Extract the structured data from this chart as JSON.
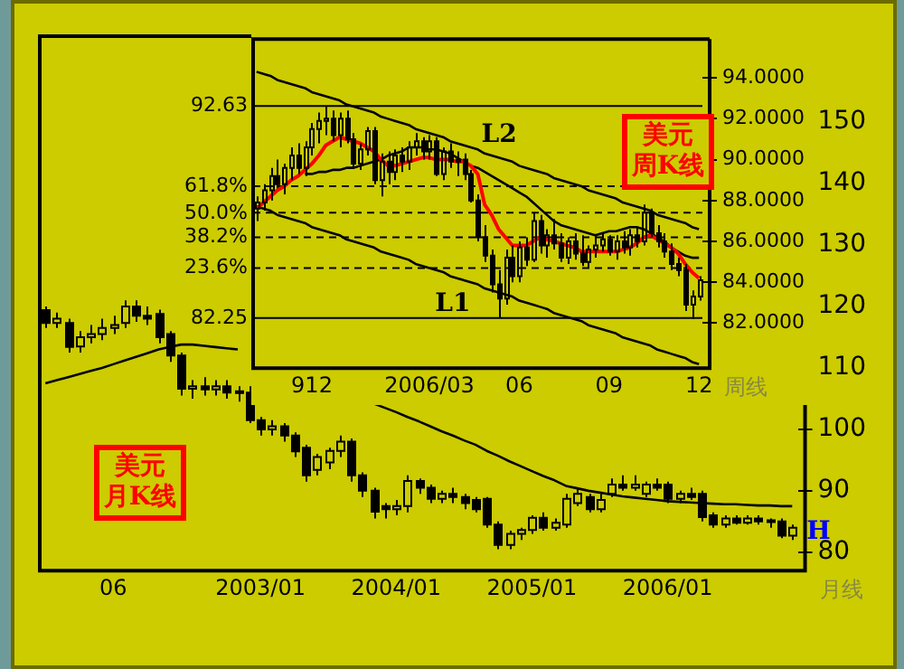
{
  "chart_data": [
    {
      "type": "candlestick",
      "color": "#000000",
      "categories": [
        null,
        null,
        null,
        null,
        null,
        null,
        "06",
        null,
        null,
        null,
        null,
        null,
        null,
        null,
        null,
        null,
        null,
        null,
        null,
        "2003/01",
        null,
        null,
        null,
        null,
        null,
        null,
        null,
        null,
        null,
        null,
        null,
        "2004/01",
        null,
        null,
        null,
        null,
        null,
        null,
        null,
        null,
        null,
        null,
        null,
        "2005/01",
        null,
        null,
        null,
        null,
        null,
        null,
        null,
        null,
        null,
        null,
        null,
        "2006/01",
        null,
        null,
        null,
        null,
        null,
        null,
        null,
        null,
        null,
        null,
        null
      ],
      "ohlc": [
        [
          119.4,
          120,
          116.5,
          117.3
        ],
        [
          117.3,
          119,
          116.5,
          118
        ],
        [
          117.3,
          118,
          112.5,
          113.4
        ],
        [
          113.5,
          116,
          112.5,
          115
        ],
        [
          115,
          117,
          114,
          115.5
        ],
        [
          115.5,
          118,
          114.5,
          116.5
        ],
        [
          116.5,
          118.5,
          115.5,
          117
        ],
        [
          117.3,
          121,
          116.5,
          120
        ],
        [
          120,
          121,
          117.5,
          118.5
        ],
        [
          118.5,
          120,
          117,
          118
        ],
        [
          118.8,
          119.5,
          114,
          115
        ],
        [
          115.5,
          116,
          111,
          112
        ],
        [
          112,
          112.5,
          105.5,
          106.6
        ],
        [
          106.6,
          108,
          105,
          107
        ],
        [
          107,
          108.5,
          105.5,
          106.5
        ],
        [
          106.5,
          108,
          105.5,
          107
        ],
        [
          107,
          108,
          105,
          106
        ],
        [
          106,
          107,
          104.5,
          106.2
        ],
        [
          106,
          107,
          101,
          101.5
        ],
        [
          101.5,
          102,
          99,
          100
        ],
        [
          100,
          101.5,
          99,
          100.5
        ],
        [
          100.5,
          101,
          98,
          99
        ],
        [
          99,
          99.5,
          95.5,
          96.4
        ],
        [
          97,
          97.5,
          91.5,
          92.5
        ],
        [
          93.4,
          96,
          92.5,
          95.5
        ],
        [
          94.6,
          97,
          93.5,
          96.5
        ],
        [
          96.5,
          99,
          95.5,
          98
        ],
        [
          98,
          98.5,
          91.5,
          92.5
        ],
        [
          92.5,
          93,
          89,
          90
        ],
        [
          90,
          90.5,
          85.5,
          86.6
        ],
        [
          87.5,
          88,
          85.5,
          87
        ],
        [
          87,
          88.5,
          86,
          87.5
        ],
        [
          87.5,
          92.5,
          86.5,
          91.6
        ],
        [
          91.6,
          92,
          89.5,
          90.5
        ],
        [
          90.5,
          91,
          88,
          88.7
        ],
        [
          88.7,
          90,
          88,
          89.5
        ],
        [
          89.5,
          90.5,
          88,
          89
        ],
        [
          89,
          89.5,
          87,
          88
        ],
        [
          88.5,
          89,
          86.5,
          87
        ],
        [
          88.7,
          89,
          84,
          84.5
        ],
        [
          84.5,
          85,
          80.5,
          81.2
        ],
        [
          81.2,
          83.5,
          80.5,
          83
        ],
        [
          83,
          84,
          82,
          83.6
        ],
        [
          83.6,
          86,
          83,
          85.6
        ],
        [
          85.6,
          86.5,
          83.5,
          84
        ],
        [
          84,
          85.5,
          83.5,
          84.8
        ],
        [
          84.5,
          89.5,
          84,
          88.7
        ],
        [
          88,
          90.5,
          87.5,
          89.5
        ],
        [
          89,
          89.5,
          86.5,
          87
        ],
        [
          87,
          89.5,
          86.5,
          88.5
        ],
        [
          89.5,
          92,
          89,
          91
        ],
        [
          91,
          92.5,
          90,
          90.5
        ],
        [
          90.5,
          92.5,
          90,
          91
        ],
        [
          89.5,
          91.5,
          89,
          91
        ],
        [
          91,
          92,
          90,
          90.5
        ],
        [
          91,
          91.5,
          88,
          88.7
        ],
        [
          88.7,
          90,
          88,
          89.5
        ],
        [
          89.5,
          90.5,
          88.5,
          89
        ],
        [
          89.5,
          90,
          85,
          85.7
        ],
        [
          86,
          86.5,
          84,
          84.5
        ],
        [
          84.5,
          86,
          84,
          85.5
        ],
        [
          85.5,
          86,
          84.5,
          84.8
        ],
        [
          84.8,
          86,
          84.5,
          85.5
        ],
        [
          85.5,
          86,
          84.5,
          85
        ],
        [
          85,
          85.5,
          84,
          85.2
        ],
        [
          85,
          85.5,
          82.3,
          82.7
        ],
        [
          82.7,
          84.5,
          82,
          84
        ]
      ],
      "series": [
        {
          "type": "line",
          "color": "#000000",
          "values": [
            107.5,
            108,
            108.5,
            109,
            109.5,
            110,
            110.6,
            111.2,
            111.8,
            112.4,
            113,
            113.4,
            113.8,
            113.8,
            113.6,
            113.4,
            113.2,
            113,
            null,
            null,
            null,
            null,
            null,
            null,
            null,
            null,
            null,
            null,
            null,
            104.2,
            103.5,
            102.8,
            102,
            101.3,
            100.5,
            99.7,
            99,
            98.2,
            97.5,
            96.5,
            95.7,
            94.8,
            94,
            93.2,
            92.4,
            91.7,
            90.8,
            90.4,
            90,
            89.7,
            89.4,
            89.1,
            88.9,
            88.7,
            88.5,
            88.3,
            88.2,
            88.1,
            88,
            87.9,
            87.8,
            87.8,
            87.7,
            87.6,
            87.6,
            87.5,
            87.5
          ]
        }
      ],
      "ylim": [
        77,
        164
      ],
      "yticks": [
        80,
        90,
        100,
        110,
        120,
        130,
        140,
        150
      ],
      "marker": "none",
      "annotations": [
        "美元月K线",
        "月线",
        "H"
      ]
    },
    {
      "type": "candlestick",
      "color": "#000000",
      "categories": [
        null,
        null,
        null,
        null,
        null,
        null,
        null,
        null,
        "912",
        null,
        null,
        null,
        null,
        null,
        null,
        null,
        null,
        null,
        null,
        null,
        null,
        null,
        null,
        null,
        null,
        "2006/03",
        null,
        null,
        null,
        null,
        null,
        null,
        null,
        null,
        null,
        null,
        null,
        null,
        "06",
        null,
        null,
        null,
        null,
        null,
        null,
        null,
        null,
        null,
        null,
        null,
        null,
        "09",
        null,
        null,
        null,
        null,
        null,
        null,
        null,
        null,
        null,
        null,
        null,
        null,
        "12"
      ],
      "ohlc": [
        [
          87.6,
          88.2,
          87,
          87.9
        ],
        [
          87.9,
          88.8,
          87.5,
          88.5
        ],
        [
          88.5,
          89.6,
          88,
          89.2
        ],
        [
          89.2,
          90,
          88.6,
          88.8
        ],
        [
          88.8,
          89.8,
          88.3,
          89.6
        ],
        [
          89.6,
          90.6,
          89,
          90.2
        ],
        [
          90.2,
          90.8,
          89.3,
          89.6
        ],
        [
          89.6,
          90.9,
          89.2,
          90.6
        ],
        [
          90.6,
          91.8,
          90.2,
          91.5
        ],
        [
          91.5,
          92.3,
          90.8,
          91.9
        ],
        [
          91.9,
          92.63,
          91.2,
          92
        ],
        [
          92,
          92.4,
          90.9,
          91.2
        ],
        [
          91.2,
          92.3,
          90.6,
          92
        ],
        [
          92,
          92.4,
          90.8,
          91
        ],
        [
          91,
          91.3,
          89.6,
          89.8
        ],
        [
          89.8,
          90.8,
          89.5,
          90.5
        ],
        [
          90.5,
          91.6,
          90.2,
          91.4
        ],
        [
          91.4,
          91.6,
          88.8,
          89
        ],
        [
          89,
          90.3,
          88.2,
          89.9
        ],
        [
          89.9,
          90.4,
          88.8,
          89.4
        ],
        [
          89.4,
          90.5,
          89,
          90.2
        ],
        [
          90.2,
          90.6,
          89.4,
          89.9
        ],
        [
          89.9,
          90.9,
          89.5,
          90.6
        ],
        [
          90.6,
          91.3,
          90.2,
          90.9
        ],
        [
          90.9,
          91.1,
          90,
          90.4
        ],
        [
          90.4,
          91.2,
          90,
          90.9
        ],
        [
          90.9,
          91.1,
          89.2,
          89.3
        ],
        [
          89.3,
          90.6,
          89,
          90.4
        ],
        [
          90.4,
          90.8,
          89.6,
          89.9
        ],
        [
          89.9,
          90.4,
          89.2,
          90
        ],
        [
          90,
          90.3,
          89,
          89.3
        ],
        [
          89.3,
          89.5,
          87.9,
          88
        ],
        [
          88,
          88.3,
          86,
          86.2
        ],
        [
          86.2,
          86.8,
          85,
          85.3
        ],
        [
          85.3,
          85.6,
          83.5,
          83.9
        ],
        [
          83.9,
          84.6,
          82.25,
          83.2
        ],
        [
          83.2,
          85.6,
          82.9,
          85.2
        ],
        [
          85.2,
          85.8,
          84,
          84.3
        ],
        [
          84.3,
          86,
          84,
          85.7
        ],
        [
          85.7,
          86.2,
          84.8,
          85.1
        ],
        [
          85.1,
          87.4,
          85,
          87
        ],
        [
          87,
          87.3,
          85.4,
          85.8
        ],
        [
          85.8,
          86.6,
          85.2,
          86.3
        ],
        [
          86.3,
          87.1,
          85.6,
          85.9
        ],
        [
          85.9,
          86.4,
          85,
          85.2
        ],
        [
          85.2,
          86.2,
          84.9,
          86
        ],
        [
          86,
          86.4,
          85.1,
          85.4
        ],
        [
          85.4,
          86.3,
          84.8,
          85
        ],
        [
          85,
          85.8,
          84.7,
          85.6
        ],
        [
          85.6,
          86.3,
          85.2,
          85.8
        ],
        [
          85.8,
          86.4,
          85.5,
          86.1
        ],
        [
          86.1,
          86.3,
          85.3,
          85.5
        ],
        [
          85.5,
          86.3,
          85.1,
          86
        ],
        [
          86,
          86.5,
          85.4,
          85.7
        ],
        [
          85.7,
          86.6,
          85.3,
          86.3
        ],
        [
          86.3,
          86.7,
          85.7,
          86
        ],
        [
          86,
          87.8,
          85.8,
          87.4
        ],
        [
          87.4,
          87.6,
          86.2,
          86.4
        ],
        [
          86.4,
          86.8,
          85.7,
          86
        ],
        [
          86,
          86.4,
          85.2,
          85.5
        ],
        [
          85.5,
          85.9,
          84.6,
          84.9
        ],
        [
          84.9,
          85.2,
          84.3,
          84.6
        ],
        [
          84.6,
          84.9,
          82.6,
          82.9
        ],
        [
          82.9,
          83.6,
          82.2,
          83.3
        ],
        [
          83.3,
          84.3,
          83.1,
          84.1
        ]
      ],
      "series": [
        {
          "type": "line",
          "color": "#ff0000",
          "values": [
            87.6,
            87.9,
            88.2,
            88.5,
            88.7,
            89,
            89.2,
            89.5,
            89.8,
            90.2,
            90.7,
            90.9,
            91.1,
            91,
            90.9,
            90.8,
            90.6,
            90.4,
            90,
            89.7,
            89.7,
            89.8,
            89.9,
            90,
            90.1,
            90.1,
            90,
            90,
            90,
            89.9,
            89.9,
            89.7,
            89.3,
            87.8,
            87.3,
            86.6,
            86.2,
            85.8,
            85.8,
            85.8,
            86,
            86.2,
            86.1,
            86,
            85.9,
            85.8,
            85.7,
            85.5,
            85.5,
            85.5,
            85.5,
            85.5,
            85.5,
            85.6,
            85.7,
            85.9,
            86.2,
            86.3,
            86.1,
            85.9,
            85.7,
            85.4,
            84.9,
            84.5,
            84.2
          ]
        },
        {
          "type": "line",
          "color": "#000000",
          "values": [
            null,
            null,
            null,
            null,
            null,
            null,
            null,
            89.3,
            89.3,
            89.4,
            89.4,
            89.5,
            89.5,
            89.6,
            89.6,
            89.7,
            89.8,
            89.9,
            90,
            90.2,
            90.3,
            90.4,
            90.6,
            90.6,
            90.6,
            90.5,
            90.5,
            90.4,
            90.3,
            90.1,
            89.9,
            89.7,
            89.6,
            89.4,
            89.2,
            89,
            88.8,
            88.6,
            88.4,
            88.2,
            87.9,
            87.6,
            87.3,
            87,
            86.8,
            86.7,
            86.6,
            86.5,
            86.4,
            86.3,
            86.4,
            86.5,
            86.5,
            86.6,
            86.7,
            86.7,
            86.6,
            86.4,
            86.2,
            86,
            85.7,
            85.5,
            85.3,
            85.2,
            85.2
          ]
        },
        {
          "type": "line",
          "name": "L2",
          "color": "#000000",
          "values": [
            94.3,
            94.2,
            94.1,
            93.9,
            93.8,
            93.7,
            93.6,
            93.5,
            93.3,
            93.2,
            93.1,
            93,
            92.9,
            92.7,
            92.6,
            92.5,
            92.4,
            92.3,
            92.1,
            92,
            91.9,
            91.8,
            91.7,
            91.5,
            91.4,
            91.3,
            91.2,
            91.1,
            90.9,
            90.8,
            90.7,
            90.6,
            90.5,
            90.3,
            90.2,
            90.1,
            90,
            89.9,
            89.7,
            89.6,
            89.5,
            89.4,
            89.3,
            89.1,
            89,
            88.9,
            88.8,
            88.7,
            88.5,
            88.4,
            88.3,
            88.2,
            88.1,
            87.9,
            87.8,
            87.7,
            87.6,
            87.5,
            87.3,
            87.2,
            87.1,
            87,
            86.9,
            86.7,
            86.6
          ]
        },
        {
          "type": "line",
          "name": "L1",
          "color": "#000000",
          "values": [
            87.7,
            87.6,
            87.5,
            87.3,
            87.2,
            87.1,
            87,
            86.9,
            86.7,
            86.6,
            86.5,
            86.4,
            86.3,
            86.1,
            86,
            85.9,
            85.8,
            85.7,
            85.5,
            85.4,
            85.3,
            85.2,
            85.1,
            84.9,
            84.8,
            84.7,
            84.6,
            84.5,
            84.3,
            84.2,
            84.1,
            84,
            83.9,
            83.7,
            83.6,
            83.5,
            83.4,
            83.3,
            83.1,
            83,
            82.9,
            82.8,
            82.7,
            82.5,
            82.4,
            82.3,
            82.2,
            82.1,
            81.9,
            81.8,
            81.7,
            81.6,
            81.5,
            81.3,
            81.2,
            81.1,
            81,
            80.9,
            80.7,
            80.6,
            80.5,
            80.4,
            80.3,
            80.1,
            80
          ]
        }
      ],
      "ylim": [
        79.8,
        95.9
      ],
      "yticks": [
        {
          "value": 82,
          "label": "82.0000"
        },
        {
          "value": 84,
          "label": "84.0000"
        },
        {
          "value": 86,
          "label": "86.0000"
        },
        {
          "value": 88,
          "label": "88.0000"
        },
        {
          "value": 90,
          "label": "90.0000"
        },
        {
          "value": 92,
          "label": "92.0000"
        },
        {
          "value": 94,
          "label": "94.0000"
        }
      ],
      "marker": "none",
      "ref_lines": [
        {
          "axis": "y",
          "value": 92.63,
          "label": "92.63",
          "color": "#000000",
          "line_style": "solid"
        },
        {
          "axis": "y",
          "value": 88.7,
          "color": "#000000",
          "line_style": "dashed"
        },
        {
          "axis": "y",
          "value": 87.4,
          "color": "#000000",
          "line_style": "dashed"
        },
        {
          "axis": "y",
          "value": 86.2,
          "color": "#000000",
          "line_style": "dashed"
        },
        {
          "axis": "y",
          "value": 84.7,
          "color": "#000000",
          "line_style": "dashed"
        },
        {
          "axis": "y",
          "value": 82.25,
          "label": "82.25",
          "color": "#000000",
          "line_style": "solid"
        }
      ],
      "annotations": [
        "美元周K线",
        "周线",
        "61.8%",
        "50.0%",
        "38.2%",
        "23.6%"
      ]
    }
  ]
}
